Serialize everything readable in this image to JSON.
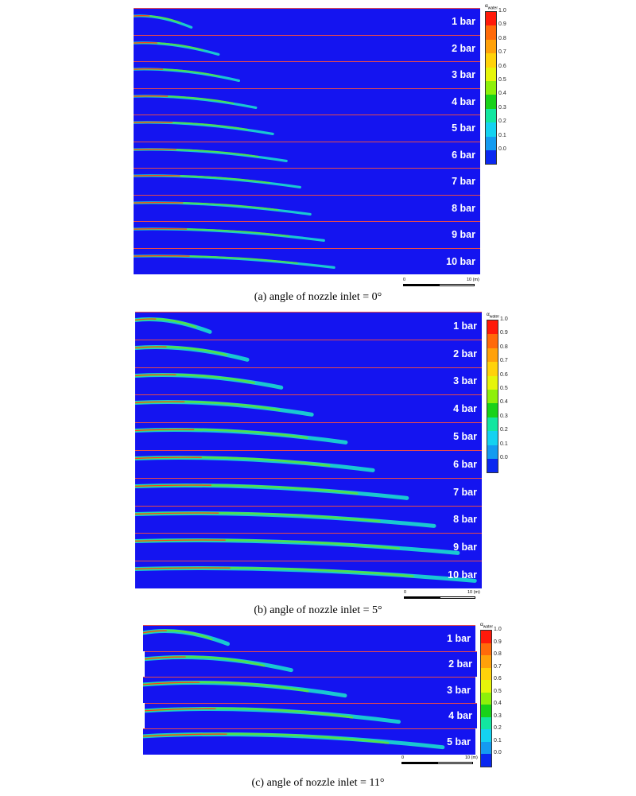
{
  "legend": {
    "title_main": "α",
    "title_sub": "water",
    "ticks": [
      "1.0",
      "0.9",
      "0.8",
      "0.7",
      "0.6",
      "0.5",
      "0.4",
      "0.3",
      "0.2",
      "0.1",
      "0.0"
    ],
    "colors": [
      "#ff1a0a",
      "#ff6a0a",
      "#ffa10a",
      "#ffd20a",
      "#e6f50a",
      "#8ef00a",
      "#19d219",
      "#12e6a0",
      "#14d2f0",
      "#149bf0",
      "#0a28f0"
    ]
  },
  "scale": {
    "start": "0",
    "end": "10 (m)"
  },
  "panels": [
    {
      "caption": "(a) angle of nozzle inlet = 0°",
      "angle_deg": 0,
      "rows": [
        {
          "label": "1 bar",
          "reach": 0.17
        },
        {
          "label": "2 bar",
          "reach": 0.25
        },
        {
          "label": "3 bar",
          "reach": 0.31
        },
        {
          "label": "4 bar",
          "reach": 0.36
        },
        {
          "label": "5 bar",
          "reach": 0.41
        },
        {
          "label": "6 bar",
          "reach": 0.45
        },
        {
          "label": "7 bar",
          "reach": 0.49
        },
        {
          "label": "8 bar",
          "reach": 0.52
        },
        {
          "label": "9 bar",
          "reach": 0.56
        },
        {
          "label": "10 bar",
          "reach": 0.59
        }
      ]
    },
    {
      "caption": "(b) angle of nozzle inlet = 5°",
      "angle_deg": 5,
      "rows": [
        {
          "label": "1 bar",
          "reach": 0.22
        },
        {
          "label": "2 bar",
          "reach": 0.33
        },
        {
          "label": "3 bar",
          "reach": 0.43
        },
        {
          "label": "4 bar",
          "reach": 0.52
        },
        {
          "label": "5 bar",
          "reach": 0.62
        },
        {
          "label": "6 bar",
          "reach": 0.7
        },
        {
          "label": "7 bar",
          "reach": 0.8
        },
        {
          "label": "8 bar",
          "reach": 0.88
        },
        {
          "label": "9 bar",
          "reach": 0.95
        },
        {
          "label": "10 bar",
          "reach": 1.0
        }
      ]
    },
    {
      "caption": "(c) angle of nozzle inlet = 11°",
      "angle_deg": 11,
      "rows": [
        {
          "label": "1 bar",
          "reach": 0.26
        },
        {
          "label": "2 bar",
          "reach": 0.45
        },
        {
          "label": "3 bar",
          "reach": 0.62
        },
        {
          "label": "4 bar",
          "reach": 0.78
        },
        {
          "label": "5 bar",
          "reach": 0.92
        }
      ]
    }
  ]
}
